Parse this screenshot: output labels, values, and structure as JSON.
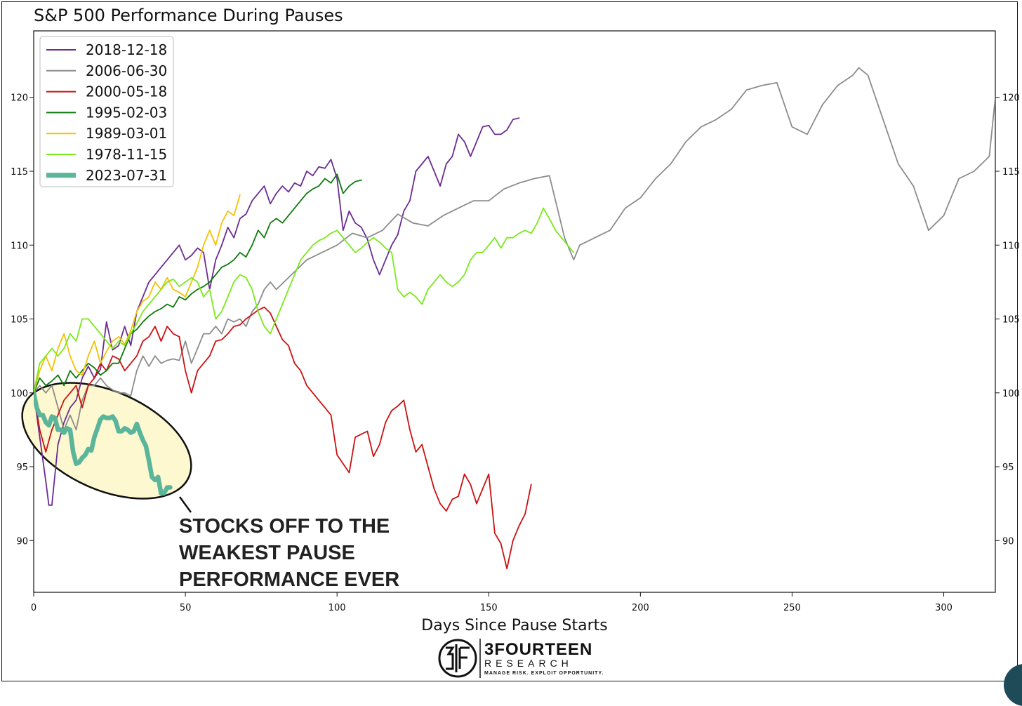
{
  "chart_data": {
    "type": "line",
    "title": "S&P 500 Performance During Pauses",
    "xlabel": "Days Since Pause Starts",
    "ylabel": "",
    "xlim": [
      0,
      317
    ],
    "ylim": [
      86.5,
      124.5
    ],
    "x_ticks": [
      0,
      50,
      100,
      150,
      200,
      250,
      300
    ],
    "y_ticks": [
      90,
      95,
      100,
      105,
      110,
      115,
      120
    ],
    "grid": false,
    "y_ticks_right": true,
    "legend_position": "top-left",
    "series": [
      {
        "name": "2018-12-18",
        "color": "#6a2c91",
        "x": [
          0,
          2,
          4,
          5,
          6,
          8,
          10,
          12,
          14,
          16,
          18,
          20,
          22,
          24,
          26,
          28,
          30,
          32,
          34,
          36,
          38,
          40,
          42,
          44,
          46,
          48,
          50,
          52,
          54,
          56,
          58,
          60,
          62,
          64,
          66,
          68,
          70,
          72,
          74,
          76,
          78,
          80,
          82,
          84,
          86,
          88,
          90,
          92,
          94,
          96,
          98,
          100,
          102,
          104,
          106,
          108,
          110,
          112,
          114,
          116,
          118,
          120,
          122,
          124,
          126,
          128,
          130,
          132,
          134,
          136,
          138,
          140,
          142,
          144,
          146,
          148,
          150,
          152,
          154,
          156,
          158,
          160
        ],
        "y": [
          100,
          97,
          94,
          92.4,
          92.4,
          96.5,
          98,
          99,
          99.5,
          101,
          101.8,
          101,
          101.6,
          104.8,
          102.9,
          103.2,
          104.5,
          103.2,
          105.5,
          106.5,
          107.5,
          108,
          108.5,
          109,
          109.5,
          110,
          109,
          109.3,
          109.8,
          109.5,
          107,
          109,
          110,
          111.2,
          110.5,
          111.8,
          112.1,
          113,
          113.5,
          114,
          112.8,
          113.5,
          114,
          113.6,
          114.2,
          114,
          115,
          114.7,
          115.3,
          115.2,
          115.8,
          114.5,
          111,
          112.3,
          111.5,
          111.2,
          110.4,
          109,
          108,
          109,
          110,
          110.7,
          112.3,
          113,
          115,
          115.5,
          116,
          115,
          114,
          115.5,
          116,
          117.5,
          117,
          116,
          117,
          118,
          118.1,
          117.5,
          117.5,
          117.8,
          118.5,
          118.6
        ]
      },
      {
        "name": "2006-06-30",
        "color": "#8c8c8c",
        "x": [
          0,
          2,
          4,
          6,
          8,
          10,
          12,
          14,
          16,
          18,
          20,
          22,
          24,
          26,
          28,
          30,
          32,
          34,
          36,
          38,
          40,
          42,
          44,
          46,
          48,
          50,
          52,
          54,
          56,
          58,
          60,
          62,
          64,
          66,
          68,
          70,
          72,
          74,
          76,
          78,
          80,
          85,
          90,
          95,
          100,
          105,
          110,
          115,
          120,
          125,
          130,
          135,
          140,
          145,
          150,
          155,
          160,
          165,
          170,
          175,
          178,
          180,
          185,
          190,
          195,
          200,
          205,
          210,
          215,
          220,
          225,
          230,
          235,
          240,
          245,
          250,
          255,
          260,
          265,
          270,
          272,
          275,
          280,
          285,
          290,
          295,
          300,
          305,
          310,
          315,
          317
        ],
        "y": [
          100,
          100.5,
          100,
          100.5,
          99,
          97.5,
          98.5,
          97.5,
          99.5,
          100.5,
          100.5,
          101,
          100.5,
          100.2,
          100,
          100,
          99.8,
          101.5,
          102.5,
          101.8,
          102.5,
          102,
          102.2,
          102.3,
          102.2,
          103.5,
          102,
          103,
          104,
          104,
          104.5,
          104,
          105,
          104.8,
          105,
          104.5,
          105.5,
          106,
          107,
          107.5,
          107,
          108,
          109,
          109.5,
          110,
          110.8,
          110.5,
          111,
          112.1,
          111.5,
          111.3,
          112,
          112.5,
          113,
          113,
          113.8,
          114.2,
          114.5,
          114.7,
          110.5,
          109,
          110,
          110.5,
          111,
          112.5,
          113.2,
          114.5,
          115.5,
          117,
          118,
          118.5,
          119.2,
          120.5,
          120.8,
          121,
          118,
          117.5,
          119.5,
          120.8,
          121.5,
          122,
          121.5,
          118.5,
          115.5,
          114,
          111,
          112,
          114.5,
          115,
          116,
          120
        ]
      },
      {
        "name": "2000-05-18",
        "color": "#cc1111",
        "x": [
          0,
          2,
          4,
          6,
          8,
          10,
          12,
          14,
          16,
          18,
          20,
          22,
          24,
          26,
          28,
          30,
          32,
          34,
          36,
          38,
          40,
          42,
          44,
          46,
          48,
          50,
          52,
          54,
          56,
          58,
          60,
          62,
          64,
          66,
          68,
          70,
          72,
          74,
          76,
          78,
          80,
          82,
          84,
          86,
          88,
          90,
          92,
          94,
          96,
          98,
          100,
          102,
          104,
          106,
          108,
          110,
          112,
          114,
          116,
          118,
          120,
          122,
          124,
          126,
          128,
          130,
          132,
          134,
          136,
          138,
          140,
          142,
          144,
          146,
          148,
          150,
          152,
          154,
          156,
          158,
          160,
          162,
          164
        ],
        "y": [
          100,
          97.5,
          96,
          97.5,
          98.5,
          99.5,
          100,
          100.5,
          99,
          100.5,
          101,
          102,
          101.5,
          102.5,
          102.3,
          101.5,
          102,
          102.5,
          103.5,
          103.8,
          104.5,
          103.5,
          104.5,
          104,
          103.8,
          101.5,
          100,
          101.5,
          102,
          102.5,
          103.5,
          103.6,
          104,
          104.5,
          104.6,
          105,
          105.3,
          105.6,
          105.8,
          105.4,
          104.5,
          103.6,
          103.2,
          102,
          101.5,
          100.5,
          100,
          99.5,
          99,
          98.5,
          95.8,
          95.2,
          94.6,
          97,
          97.2,
          97.4,
          95.7,
          96.5,
          98,
          98.8,
          99.1,
          99.5,
          97.5,
          96,
          96.5,
          95,
          93.5,
          92.5,
          92,
          92.8,
          93,
          94.5,
          93.8,
          92.5,
          93.5,
          94.5,
          90.5,
          89.8,
          88.1,
          90,
          91,
          91.8,
          93.8
        ]
      },
      {
        "name": "1995-02-03",
        "color": "#0d7a0d",
        "x": [
          0,
          2,
          4,
          6,
          8,
          10,
          12,
          14,
          16,
          18,
          20,
          22,
          24,
          26,
          28,
          30,
          32,
          34,
          36,
          38,
          40,
          42,
          44,
          46,
          48,
          50,
          52,
          54,
          56,
          58,
          60,
          62,
          64,
          66,
          68,
          70,
          72,
          74,
          76,
          78,
          80,
          82,
          84,
          86,
          88,
          90,
          92,
          94,
          96,
          98,
          100,
          102,
          104,
          106,
          108
        ],
        "y": [
          100,
          101,
          100.5,
          100.8,
          101.2,
          100.5,
          101.5,
          101,
          101.5,
          102,
          101.7,
          101.2,
          101.5,
          102,
          102,
          103,
          104,
          104.3,
          104.8,
          105.2,
          105.5,
          105.7,
          106,
          105.8,
          106.5,
          106.3,
          106.7,
          107,
          107.2,
          107.5,
          108,
          108.5,
          108.7,
          109,
          109.5,
          109.2,
          110,
          111,
          110.5,
          111.5,
          111.8,
          111.5,
          112,
          112.5,
          113,
          113.5,
          113.8,
          114,
          114.5,
          114.2,
          114.8,
          113.5,
          114,
          114.3,
          114.4
        ]
      },
      {
        "name": "1989-03-01",
        "color": "#f2c200",
        "x": [
          0,
          2,
          4,
          6,
          8,
          10,
          12,
          14,
          16,
          18,
          20,
          22,
          24,
          26,
          28,
          30,
          32,
          34,
          36,
          38,
          40,
          42,
          44,
          46,
          48,
          50,
          52,
          54,
          56,
          58,
          60,
          62,
          64,
          66,
          68
        ],
        "y": [
          100,
          101.5,
          102.5,
          101.5,
          103,
          104,
          102.5,
          101.5,
          101.2,
          102.5,
          103.5,
          102,
          102.8,
          103.5,
          103.8,
          103.3,
          104.2,
          105.5,
          106.2,
          106.5,
          107.5,
          107,
          107.8,
          107,
          106.8,
          106.5,
          107.5,
          108.5,
          110,
          111,
          110,
          111.5,
          112.3,
          112,
          113.4
        ]
      },
      {
        "name": "1978-11-15",
        "color": "#7aea1a",
        "x": [
          0,
          2,
          4,
          6,
          8,
          10,
          12,
          14,
          16,
          18,
          20,
          22,
          24,
          26,
          28,
          30,
          32,
          34,
          36,
          38,
          40,
          42,
          44,
          46,
          48,
          50,
          52,
          54,
          56,
          58,
          60,
          62,
          64,
          66,
          68,
          70,
          72,
          74,
          76,
          78,
          80,
          82,
          84,
          86,
          88,
          90,
          92,
          94,
          96,
          98,
          100,
          102,
          104,
          106,
          108,
          110,
          112,
          114,
          116,
          118,
          120,
          122,
          124,
          126,
          128,
          130,
          132,
          134,
          136,
          138,
          140,
          142,
          144,
          146,
          148,
          150,
          152,
          154,
          156,
          158,
          160,
          162,
          164,
          166,
          168,
          170,
          172,
          174,
          176,
          178
        ],
        "y": [
          100,
          102,
          102.5,
          103,
          102.5,
          103,
          104,
          103.5,
          105,
          105,
          104.5,
          104,
          103.5,
          103,
          103.5,
          103.2,
          104,
          104.7,
          105.5,
          106,
          106.5,
          107,
          107.5,
          107.7,
          107.2,
          107.5,
          107.8,
          107.5,
          106.5,
          107,
          105,
          105.5,
          106.5,
          107.5,
          108,
          107.8,
          107,
          105.5,
          104.5,
          104,
          105,
          106,
          107,
          108,
          109,
          109.5,
          110,
          110.3,
          110.5,
          110.8,
          111,
          110.5,
          110,
          109.5,
          109.8,
          110.2,
          110.5,
          110.2,
          109.8,
          109.5,
          107,
          106.5,
          106.8,
          106.5,
          106,
          107,
          107.5,
          108,
          107.5,
          107.2,
          107.5,
          108,
          109,
          109.5,
          109.5,
          110,
          110.5,
          109.8,
          110.5,
          110.5,
          110.8,
          111,
          110.8,
          111.5,
          112.5,
          111.8,
          111,
          110.5,
          110,
          109.5
        ]
      },
      {
        "name": "2023-07-31",
        "color": "#5bb59a",
        "highlight": true,
        "x": [
          0,
          1,
          2,
          3,
          4,
          5,
          6,
          7,
          8,
          9,
          10,
          11,
          12,
          13,
          14,
          15,
          16,
          17,
          18,
          19,
          20,
          21,
          22,
          23,
          24,
          25,
          26,
          27,
          28,
          29,
          30,
          31,
          32,
          33,
          34,
          35,
          36,
          37,
          38,
          39,
          40,
          41,
          42,
          43,
          44,
          45
        ],
        "y": [
          100,
          99,
          98.5,
          98.5,
          98,
          97.8,
          98.4,
          98.3,
          97.5,
          97.5,
          97.3,
          97.6,
          97.5,
          96,
          95.2,
          95.3,
          95.6,
          95.8,
          96.2,
          96.1,
          97,
          97.6,
          98.2,
          98.4,
          98.3,
          98.3,
          98.4,
          98.1,
          97.4,
          97.4,
          97.6,
          97.5,
          97.3,
          97.4,
          97.9,
          97.3,
          96.8,
          96.4,
          95.4,
          94.3,
          94.1,
          94.3,
          93.2,
          93.2,
          93.6,
          93.6
        ]
      }
    ],
    "annotation": {
      "lines": [
        "STOCKS OFF TO THE",
        "WEAKEST PAUSE",
        "PERFORMANCE EVER"
      ],
      "fill_color": "#fdf8cf"
    }
  },
  "logo": {
    "name": "3FOURTEEN",
    "subtitle": "RESEARCH",
    "tagline": "MANAGE RISK. EXPLOIT OPPORTUNITY."
  }
}
